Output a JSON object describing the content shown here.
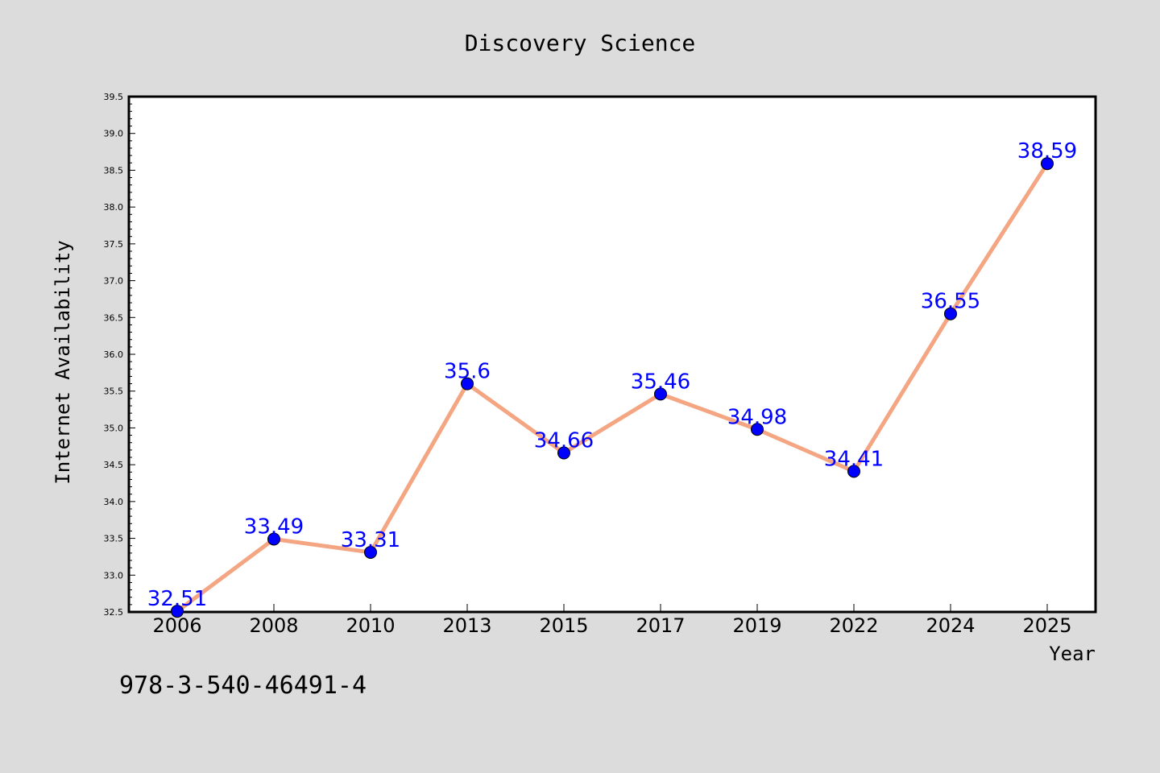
{
  "chart_data": {
    "type": "line",
    "title": "Discovery Science",
    "xlabel": "Year",
    "ylabel": "Internet Availability",
    "categories": [
      "2006",
      "2008",
      "2010",
      "2013",
      "2015",
      "2017",
      "2019",
      "2022",
      "2024",
      "2025"
    ],
    "series": [
      {
        "values": [
          32.51,
          33.49,
          33.31,
          35.6,
          34.66,
          35.46,
          34.98,
          34.41,
          36.55,
          38.59
        ]
      }
    ],
    "data_labels": [
      "32.51",
      "33.49",
      "33.31",
      "35.6",
      "34.66",
      "35.46",
      "34.98",
      "34.41",
      "36.55",
      "38.59"
    ],
    "ylim": [
      32.5,
      39.5
    ],
    "yticks": [
      "32.5",
      "33.0",
      "33.5",
      "34.0",
      "34.5",
      "35.0",
      "35.5",
      "36.0",
      "36.5",
      "37.0",
      "37.5",
      "38.0",
      "38.5",
      "39.0",
      "39.5"
    ],
    "grid": false,
    "legend": "none",
    "colors": {
      "line": "#f4a582",
      "marker": "#0000ff",
      "label": "#0000ff",
      "background": "#dcdcdc",
      "plot_area": "#ffffff"
    }
  },
  "footer": {
    "isbn": "978-3-540-46491-4"
  }
}
